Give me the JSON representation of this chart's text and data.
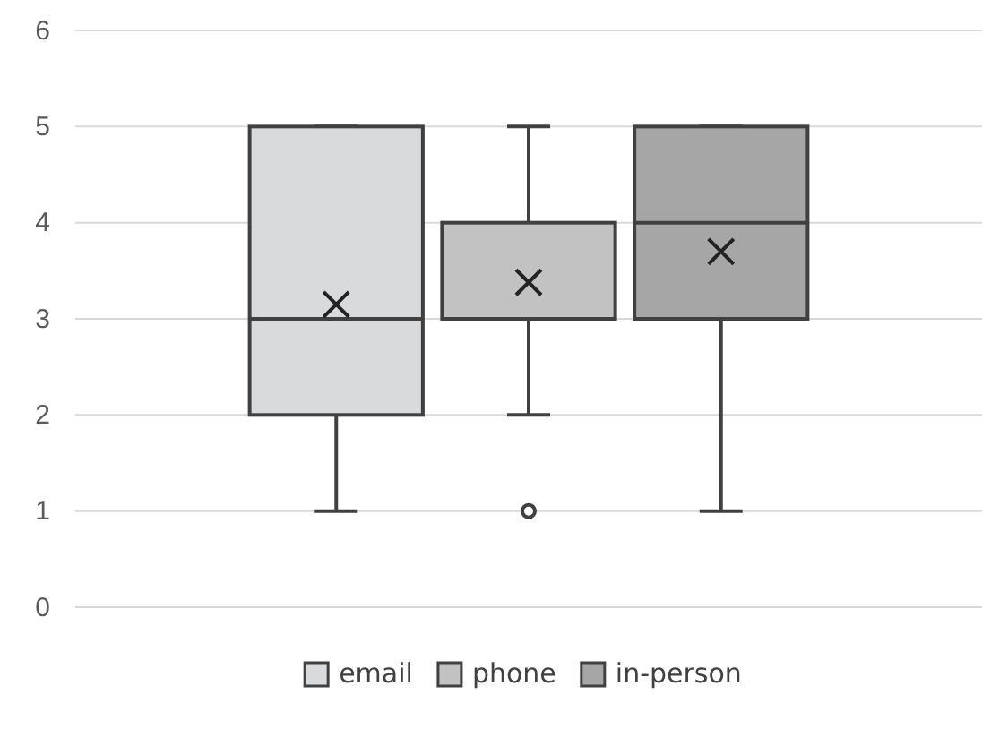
{
  "chart_data": {
    "type": "box",
    "categories": [
      null
    ],
    "ylim": [
      0,
      6
    ],
    "yticks": [
      0,
      1,
      2,
      3,
      4,
      5,
      6
    ],
    "grid": "y",
    "legend": "bottom",
    "series": [
      {
        "name": "email",
        "color": "#d9dadc",
        "boxes": [
          {
            "low": 1,
            "q1": 2,
            "median": 3,
            "q3": 5,
            "high": 5,
            "mean": 3.15
          }
        ]
      },
      {
        "name": "phone",
        "color": "#c2c2c2",
        "boxes": [
          {
            "low": 2,
            "q1": 3,
            "median": 3,
            "q3": 4,
            "high": 5,
            "mean": 3.38,
            "outliers": [
              1
            ]
          }
        ]
      },
      {
        "name": "in-person",
        "color": "#a6a6a6",
        "boxes": [
          {
            "low": 1,
            "q1": 3,
            "median": 4,
            "q3": 5,
            "high": 5,
            "mean": 3.7
          }
        ]
      }
    ]
  }
}
